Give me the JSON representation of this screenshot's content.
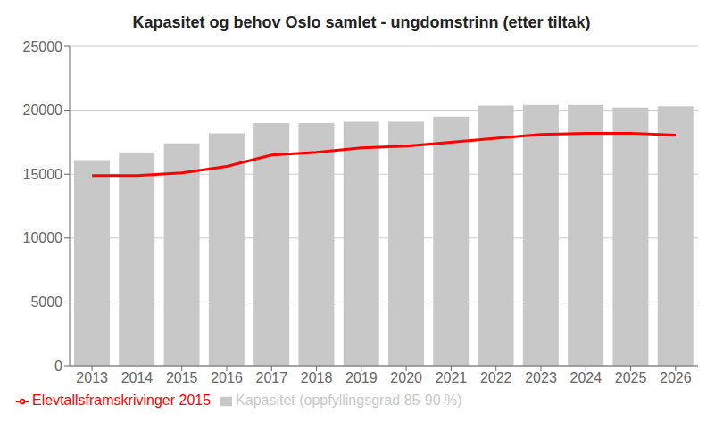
{
  "chart_data": {
    "type": "bar",
    "title": "Kapasitet og behov Oslo samlet - ungdomstrinn (etter tiltak)",
    "categories": [
      "2013",
      "2014",
      "2015",
      "2016",
      "2017",
      "2018",
      "2019",
      "2020",
      "2021",
      "2022",
      "2023",
      "2024",
      "2025",
      "2026"
    ],
    "series": [
      {
        "name": "Kapasitet (oppfyllingsgrad 85-90 %)",
        "type": "bar",
        "color": "#c8c8c8",
        "values": [
          16100,
          16700,
          17400,
          18200,
          19000,
          19000,
          19100,
          19100,
          19500,
          20350,
          20400,
          20400,
          20200,
          20300
        ]
      },
      {
        "name": "Elevtallsframskrivinger 2015",
        "type": "line",
        "color": "#ff0000",
        "values": [
          14900,
          14900,
          15100,
          15600,
          16500,
          16700,
          17050,
          17200,
          17500,
          17800,
          18100,
          18200,
          18200,
          18050
        ]
      }
    ],
    "ylim": [
      0,
      25000
    ],
    "yticks": [
      0,
      5000,
      10000,
      15000,
      20000,
      25000
    ],
    "grid": true,
    "legend": "lower left"
  }
}
